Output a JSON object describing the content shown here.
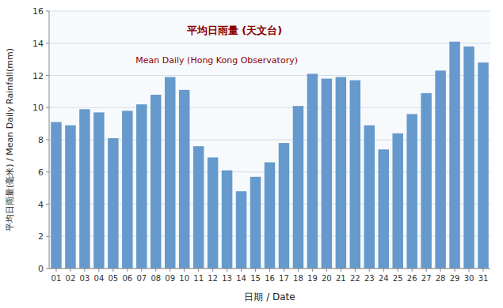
{
  "chart_data": {
    "type": "bar",
    "categories": [
      "01",
      "02",
      "03",
      "04",
      "05",
      "06",
      "07",
      "08",
      "09",
      "10",
      "11",
      "12",
      "13",
      "14",
      "15",
      "16",
      "17",
      "18",
      "19",
      "20",
      "21",
      "22",
      "23",
      "24",
      "25",
      "26",
      "27",
      "28",
      "29",
      "30",
      "31"
    ],
    "values": [
      9.1,
      8.9,
      9.9,
      9.7,
      8.1,
      9.8,
      10.2,
      10.8,
      11.9,
      11.1,
      7.6,
      6.9,
      6.1,
      4.8,
      5.7,
      6.6,
      7.8,
      10.1,
      12.1,
      11.8,
      11.9,
      11.7,
      8.9,
      7.4,
      8.4,
      9.6,
      10.9,
      12.3,
      14.1,
      13.8,
      12.8
    ],
    "color": "#6699CC",
    "x_label": "日期 / Date",
    "y_label": "平均日雨量(毫米) / Mean Daily Rainfall(mm)",
    "annotations": [
      "平均日雨量 (天文台)",
      "Mean Daily (Hong Kong Observatory)"
    ],
    "ylim": [
      0,
      16
    ],
    "yticks": [
      0,
      2,
      4,
      6,
      8,
      10,
      12,
      14,
      16
    ],
    "grid": true
  }
}
